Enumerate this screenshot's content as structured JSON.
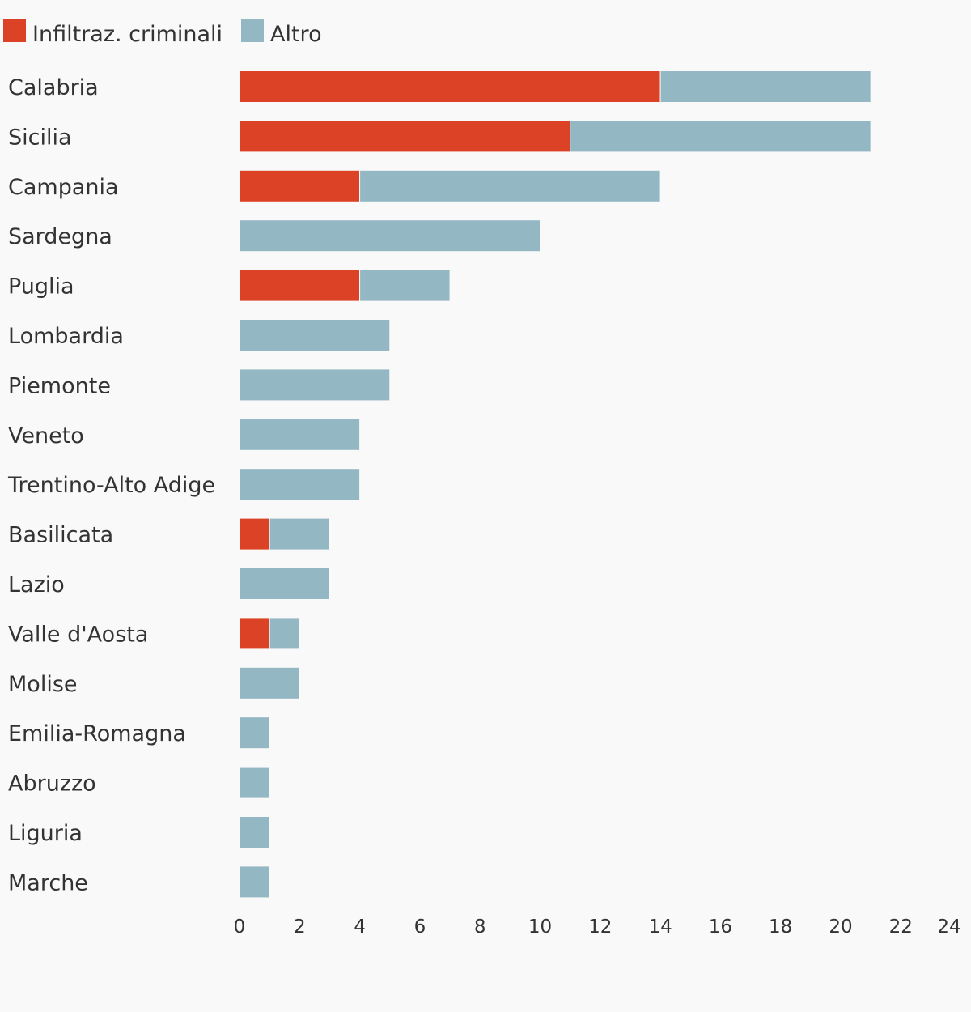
{
  "chart_data": {
    "type": "bar",
    "orientation": "horizontal",
    "stacked": true,
    "categories": [
      "Calabria",
      "Sicilia",
      "Campania",
      "Sardegna",
      "Puglia",
      "Lombardia",
      "Piemonte",
      "Veneto",
      "Trentino-Alto Adige",
      "Basilicata",
      "Lazio",
      "Valle d'Aosta",
      "Molise",
      "Emilia-Romagna",
      "Abruzzo",
      "Liguria",
      "Marche"
    ],
    "series": [
      {
        "name": "Infiltraz. criminali",
        "color": "#dc4326",
        "values": [
          14,
          11,
          4,
          0,
          4,
          0,
          0,
          0,
          0,
          1,
          0,
          1,
          0,
          0,
          0,
          0,
          0
        ]
      },
      {
        "name": "Altro",
        "color": "#93b7c3",
        "values": [
          7,
          10,
          10,
          10,
          3,
          5,
          5,
          4,
          4,
          2,
          3,
          1,
          2,
          1,
          1,
          1,
          1
        ]
      }
    ],
    "xlim": [
      0,
      24
    ],
    "xticks": [
      0,
      2,
      4,
      6,
      8,
      10,
      12,
      14,
      16,
      18,
      20,
      22,
      24
    ],
    "legend": "top-left",
    "grid": false,
    "title": "",
    "xlabel": "",
    "ylabel": ""
  }
}
